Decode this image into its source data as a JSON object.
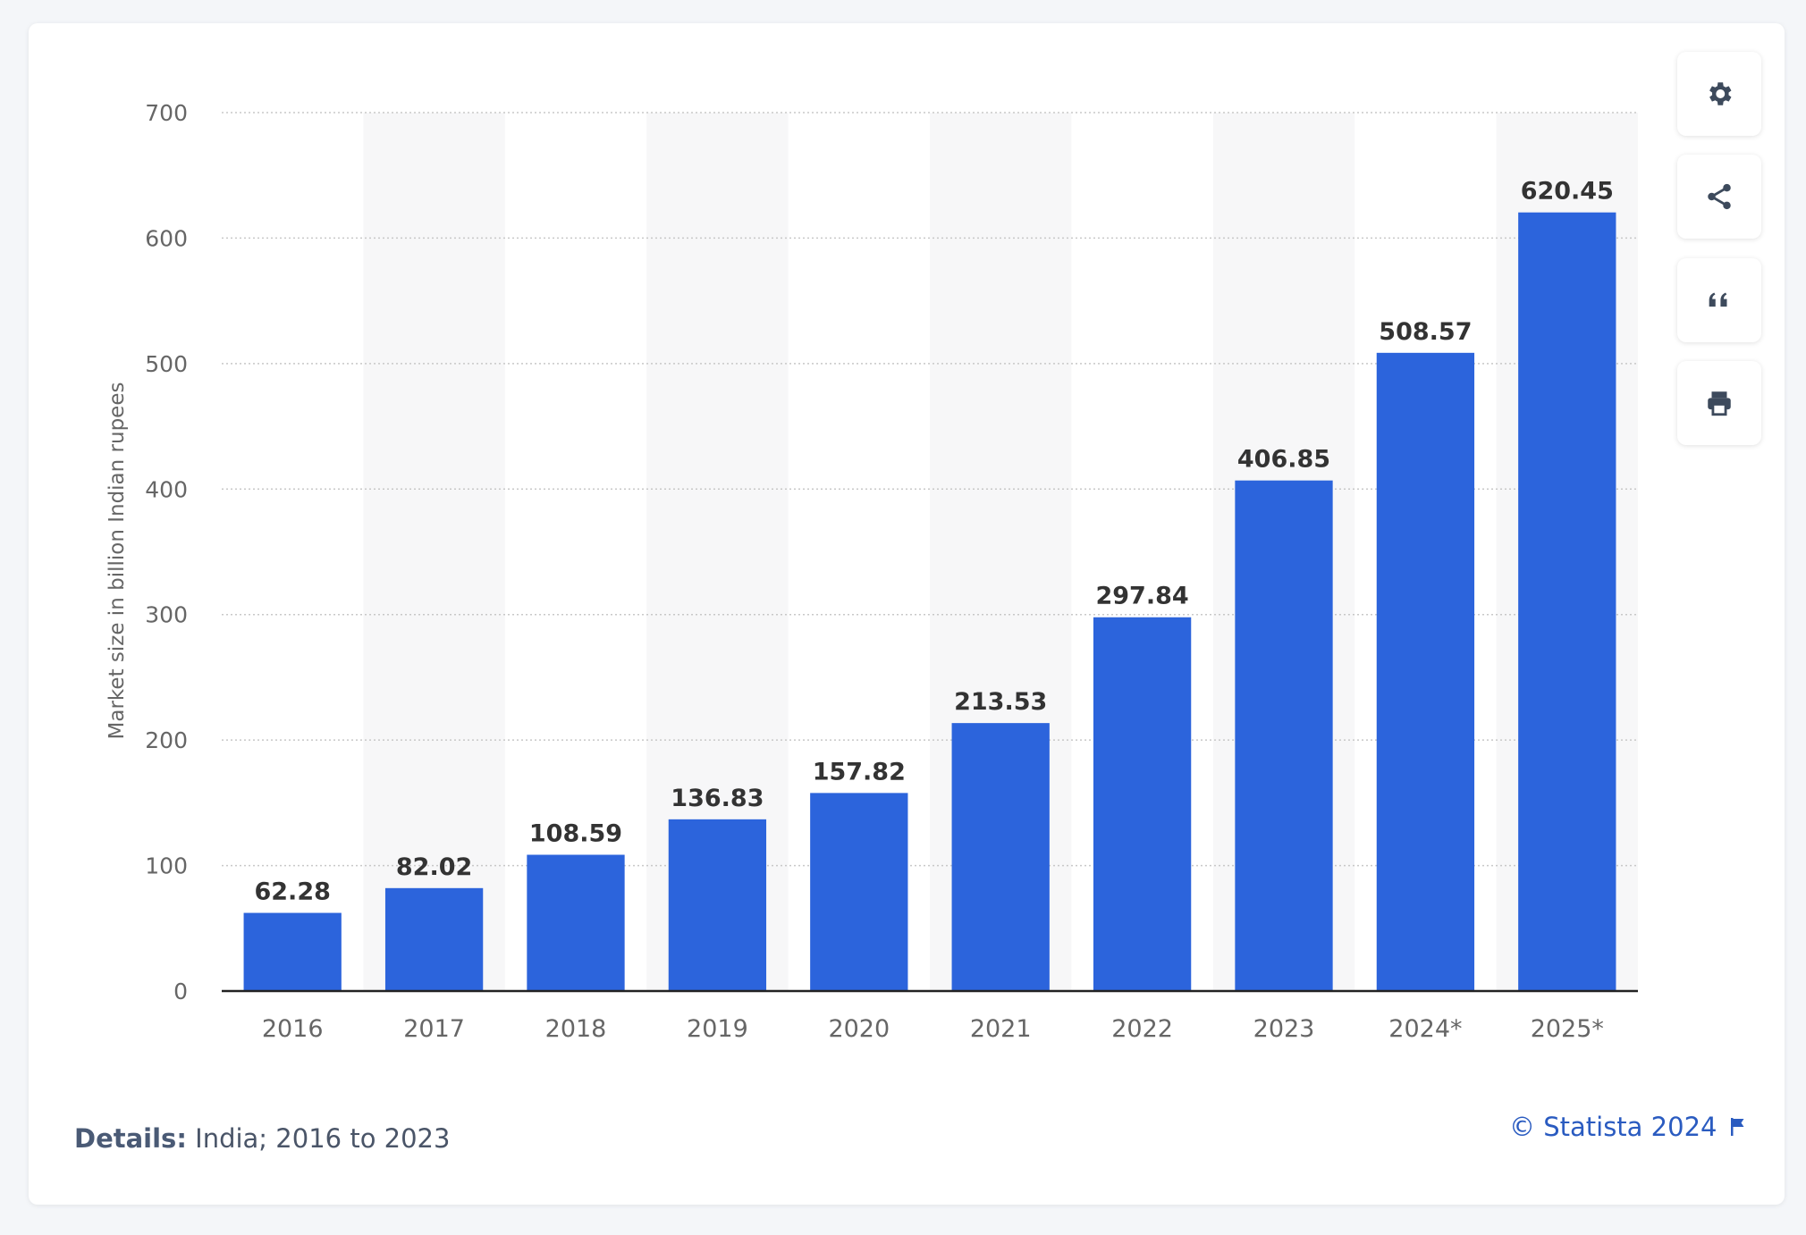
{
  "toolbar": {
    "settings_icon": "gear-icon",
    "share_icon": "share-icon",
    "cite_icon": "quote-icon",
    "print_icon": "printer-icon"
  },
  "footer": {
    "details_label": "Details:",
    "details_text": " India; 2016 to 2023",
    "credit": "© Statista 2024",
    "flag_icon": "flag-icon"
  },
  "colors": {
    "bar": "#2c64dc",
    "band": "#f7f7f8",
    "grid": "#c8c8c8",
    "axis": "#222222",
    "label": "#333333",
    "tick": "#666666"
  },
  "chart_data": {
    "type": "bar",
    "title": "",
    "xlabel": "",
    "ylabel": "Market size in billion Indian rupees",
    "categories": [
      "2016",
      "2017",
      "2018",
      "2019",
      "2020",
      "2021",
      "2022",
      "2023",
      "2024*",
      "2025*"
    ],
    "values": [
      62.28,
      82.02,
      108.59,
      136.83,
      157.82,
      213.53,
      297.84,
      406.85,
      508.57,
      620.45
    ],
    "value_labels": [
      "62.28",
      "82.02",
      "108.59",
      "136.83",
      "157.82",
      "213.53",
      "297.84",
      "406.85",
      "508.57",
      "620.45"
    ],
    "ylim": [
      0,
      700
    ],
    "yticks": [
      0,
      100,
      200,
      300,
      400,
      500,
      600,
      700
    ],
    "grid": true,
    "legend": "none"
  }
}
